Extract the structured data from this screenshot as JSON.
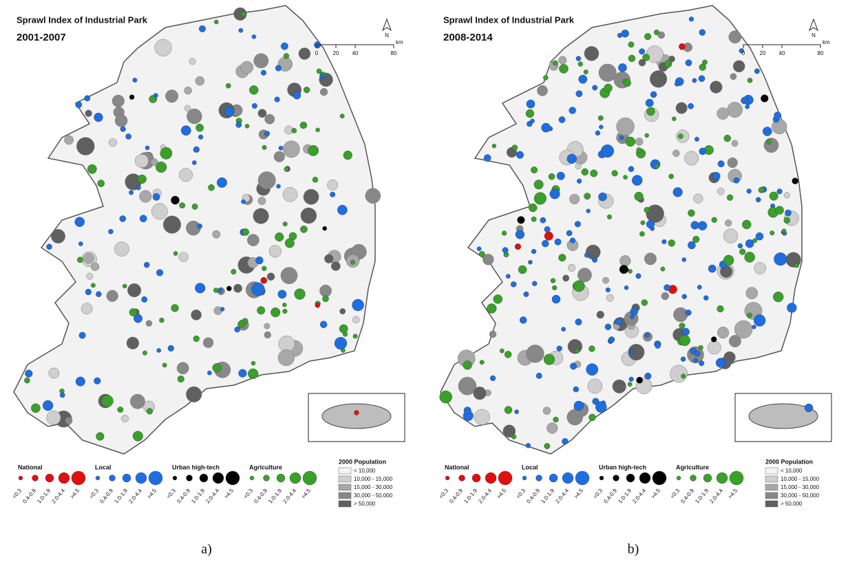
{
  "panels": [
    {
      "title": "Sprawl Index of Industrial Park",
      "period": "2001-2007",
      "caption": "a)"
    },
    {
      "title": "Sprawl Index of Industrial Park",
      "period": "2008-2014",
      "caption": "b)"
    }
  ],
  "scale_bar": {
    "ticks": [
      "0",
      "20",
      "40",
      "80"
    ],
    "unit": "km",
    "north": "N"
  },
  "legend": {
    "groups": [
      "National",
      "Local",
      "Urban high-tech",
      "Agriculture"
    ],
    "classes": [
      "<0.3",
      "0.4-0.9",
      "1.0-1.9",
      "2.0-4.4",
      ">4.5"
    ],
    "population_title": "2000 Population",
    "population_classes": [
      "< 10,000",
      "10,000 - 15,000",
      "15,000 - 30,000",
      "30,000 - 50,000",
      "> 50,000"
    ]
  }
}
